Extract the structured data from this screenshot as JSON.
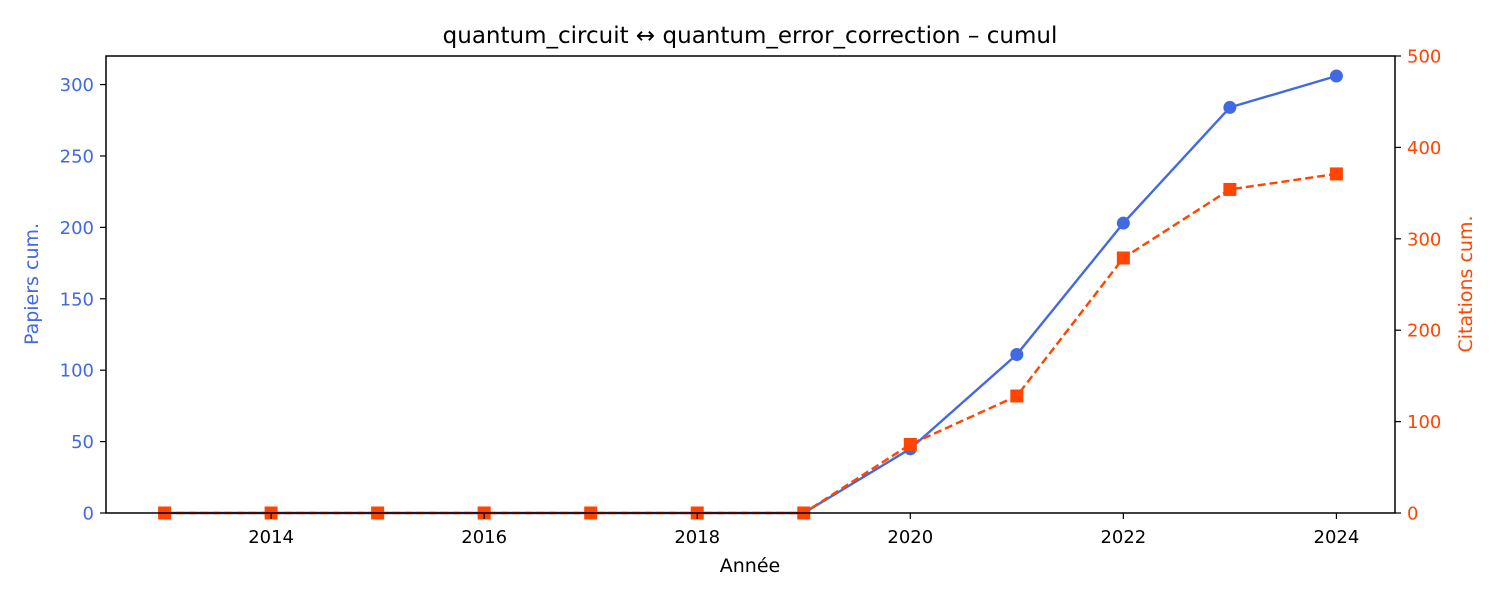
{
  "chart_data": {
    "type": "line",
    "title": "quantum_circuit  ↔  quantum_error_correction  –  cumul",
    "xlabel": "Année",
    "ylabel_left": "Papiers cum.",
    "ylabel_right": "Citations cum.",
    "x": [
      2013,
      2014,
      2015,
      2016,
      2017,
      2018,
      2019,
      2020,
      2021,
      2022,
      2023,
      2024
    ],
    "xlim": [
      2012.45,
      2024.55
    ],
    "xticks": [
      2014,
      2016,
      2018,
      2020,
      2022,
      2024
    ],
    "ylim_left": [
      0,
      320
    ],
    "yticks_left": [
      0,
      50,
      100,
      150,
      200,
      250,
      300
    ],
    "ylim_right": [
      0,
      500
    ],
    "yticks_right": [
      0,
      100,
      200,
      300,
      400,
      500
    ],
    "grid": false,
    "series": [
      {
        "name": "Papiers cum.",
        "axis": "left",
        "color": "#4169E1",
        "line_style": "solid",
        "marker": "circle",
        "values": [
          0,
          0,
          0,
          0,
          0,
          0,
          0,
          45,
          111,
          203,
          284,
          306
        ]
      },
      {
        "name": "Citations cum.",
        "axis": "right",
        "color": "#FF4500",
        "line_style": "dashed",
        "marker": "square",
        "values": [
          0,
          0,
          0,
          0,
          0,
          0,
          0,
          75,
          128,
          279,
          354,
          371
        ]
      }
    ]
  }
}
